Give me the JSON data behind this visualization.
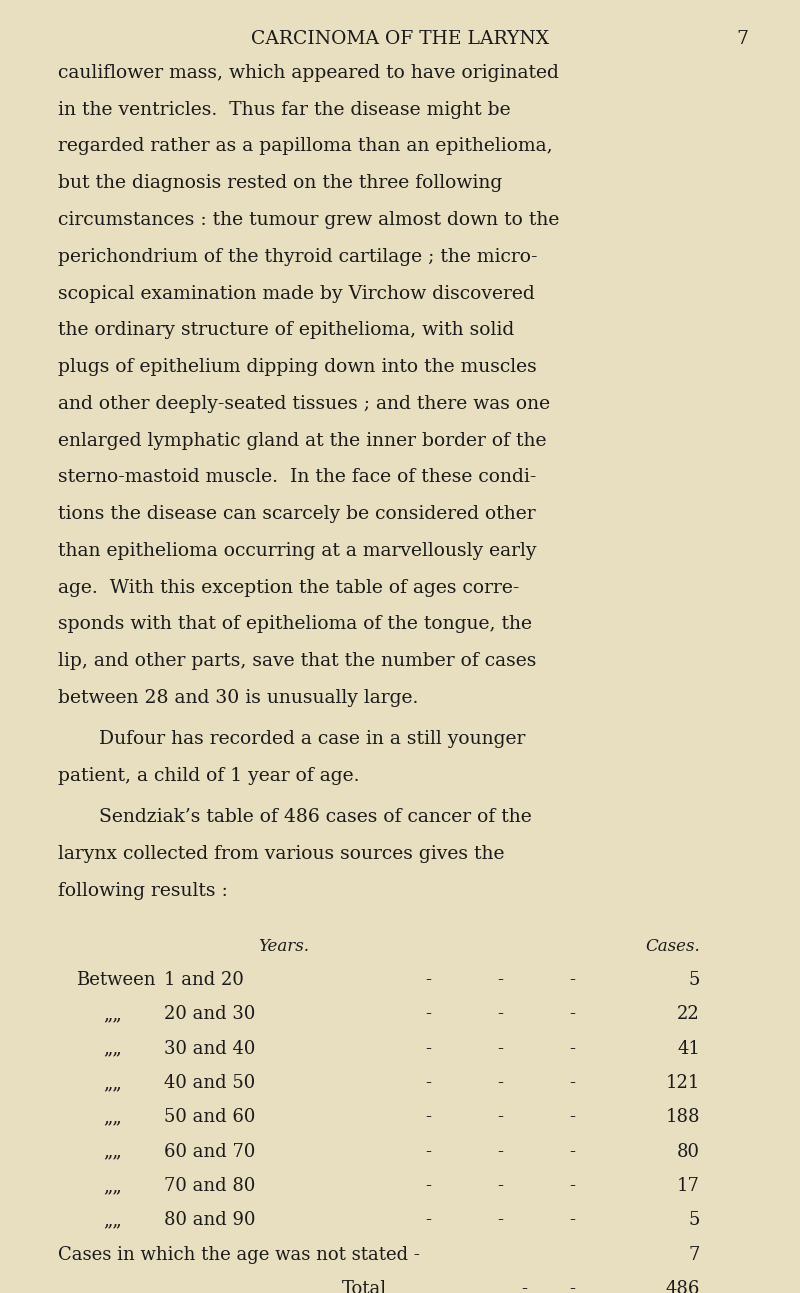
{
  "background_color": "#e8dfc0",
  "text_color": "#1a1a1a",
  "page_width": 8.0,
  "page_height": 12.93,
  "dpi": 100,
  "header_title": "CARCINOMA OF THE LARYNX",
  "header_page": "7",
  "para1_lines": [
    "cauliflower mass, which appeared to have originated",
    "in the ventricles.  Thus far the disease might be",
    "regarded rather as a papilloma than an epithelioma,",
    "but the diagnosis rested on the three following",
    "circumstances : the tumour grew almost down to the",
    "perichondrium of the thyroid cartilage ; the micro-",
    "scopical examination made by Virchow discovered",
    "the ordinary structure of epithelioma, with solid",
    "plugs of epithelium dipping down into the muscles",
    "and other deeply-seated tissues ; and there was one",
    "enlarged lymphatic gland at the inner border of the",
    "sterno-mastoid muscle.  In the face of these condi-",
    "tions the disease can scarcely be considered other",
    "than epithelioma occurring at a marvellously early",
    "age.  With this exception the table of ages corre-",
    "sponds with that of epithelioma of the tongue, the",
    "lip, and other parts, save that the number of cases",
    "between 28 and 30 is unusually large."
  ],
  "para2_lines": [
    "Dufour has recorded a case in a still younger",
    "patient, a child of 1 year of age."
  ],
  "para3_lines": [
    "Sendziak’s table of 486 cases of cancer of the",
    "larynx collected from various sources gives the",
    "following results :"
  ],
  "table_header_years": "Years.",
  "table_header_cases": "Cases.",
  "table_rows": [
    {
      "label": "Between",
      "years": "1 and 20",
      "cases": "5"
    },
    {
      "label": "„",
      "years": "20 and 30",
      "cases": "22"
    },
    {
      "label": "„",
      "years": "30 and 40",
      "cases": "41"
    },
    {
      "label": "„",
      "years": "40 and 50",
      "cases": "121"
    },
    {
      "label": "„",
      "years": "50 and 60",
      "cases": "188"
    },
    {
      "label": "„",
      "years": "60 and 70",
      "cases": "80"
    },
    {
      "label": "„",
      "years": "70 and 80",
      "cases": "17"
    },
    {
      "label": "„",
      "years": "80 and 90",
      "cases": "5"
    }
  ],
  "table_footnote": "Cases in which the age was not stated -",
  "table_footnote_cases": "7",
  "table_total_label": "Total",
  "table_total_cases": "486",
  "body_font_size": 13.5,
  "header_font_size": 13.5,
  "table_font_size": 13.0
}
